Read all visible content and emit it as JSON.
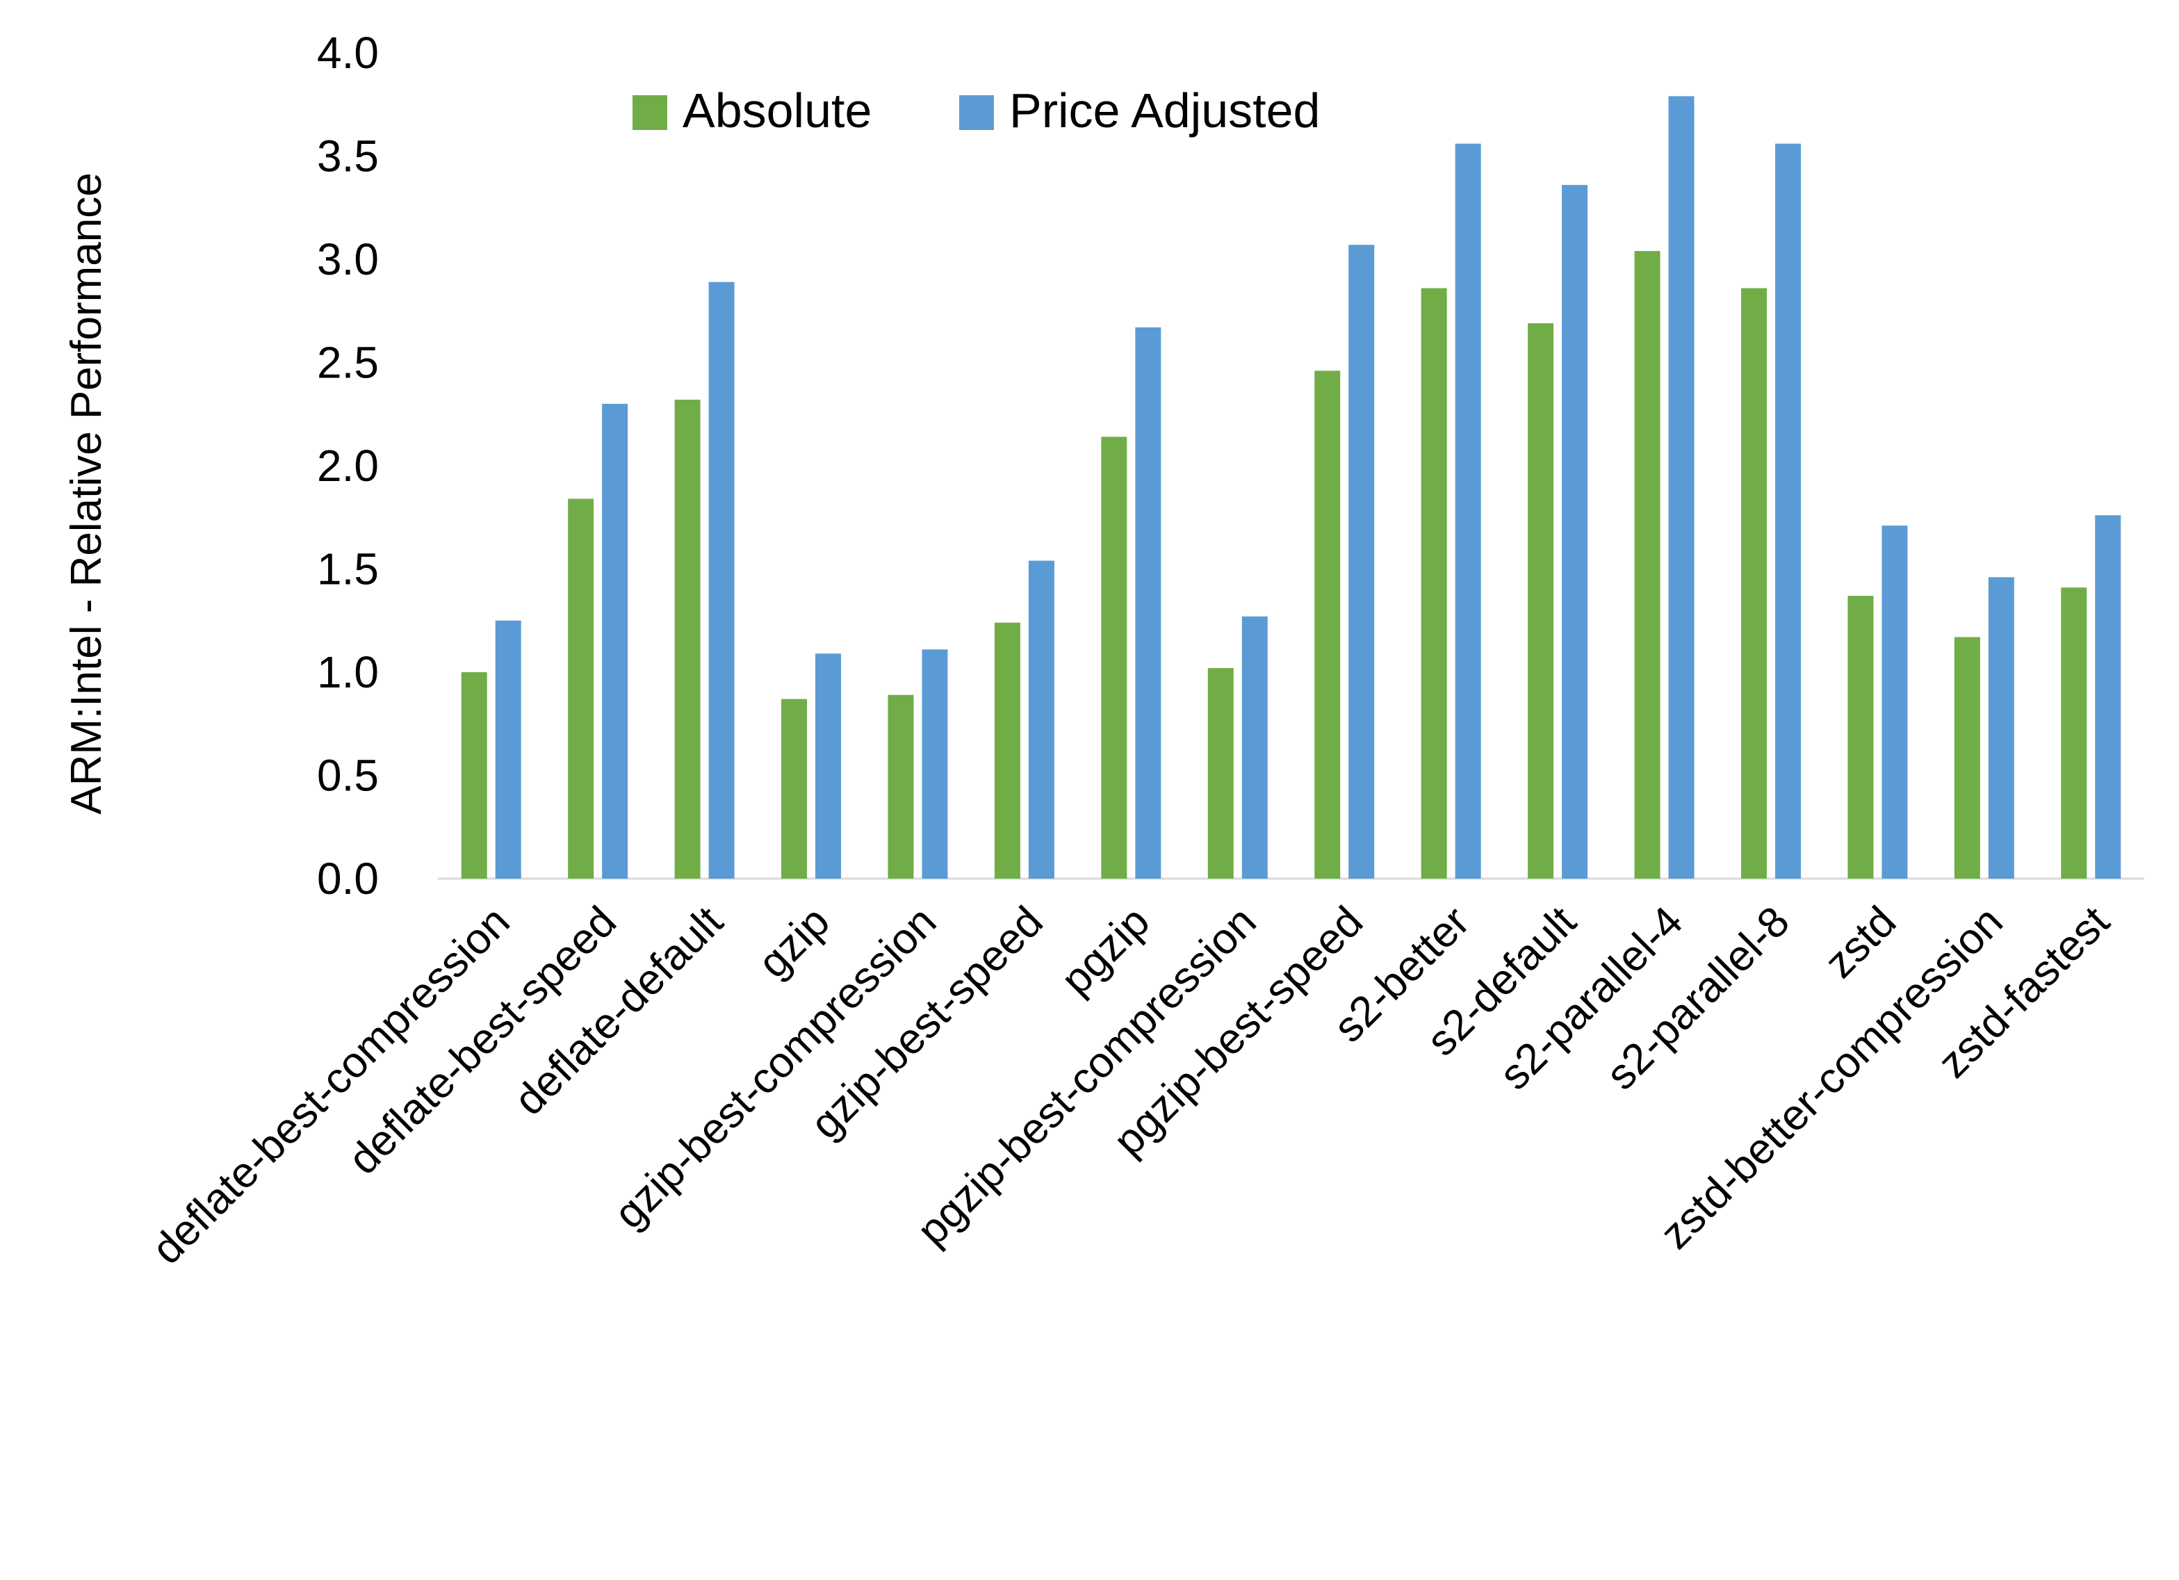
{
  "chart_data": {
    "type": "bar",
    "title": "",
    "xlabel": "",
    "ylabel": "ARM:Intel - Relative Performance",
    "ylim": [
      0,
      4
    ],
    "yticks": [
      "0.0",
      "0.5",
      "1.0",
      "1.5",
      "2.0",
      "2.5",
      "3.0",
      "3.5",
      "4.0"
    ],
    "grid": false,
    "legend": "top",
    "categories": [
      "deflate-best-compression",
      "deflate-best-speed",
      "deflate-default",
      "gzip",
      "gzip-best-compression",
      "gzip-best-speed",
      "pgzip",
      "pgzip-best-compression",
      "pgzip-best-speed",
      "s2-better",
      "s2-default",
      "s2-parallel-4",
      "s2-parallel-8",
      "zstd",
      "zstd-better-compression",
      "zstd-fastest"
    ],
    "series": [
      {
        "name": "Absolute",
        "color": "#70ad47",
        "values": [
          1.0,
          1.84,
          2.32,
          0.87,
          0.89,
          1.24,
          2.14,
          1.02,
          2.46,
          2.86,
          2.69,
          3.04,
          2.86,
          1.37,
          1.17,
          1.41
        ]
      },
      {
        "name": "Price Adjusted",
        "color": "#5b9bd5",
        "values": [
          1.25,
          2.3,
          2.89,
          1.09,
          1.11,
          1.54,
          2.67,
          1.27,
          3.07,
          3.56,
          3.36,
          3.79,
          3.56,
          1.71,
          1.46,
          1.76
        ]
      }
    ]
  }
}
